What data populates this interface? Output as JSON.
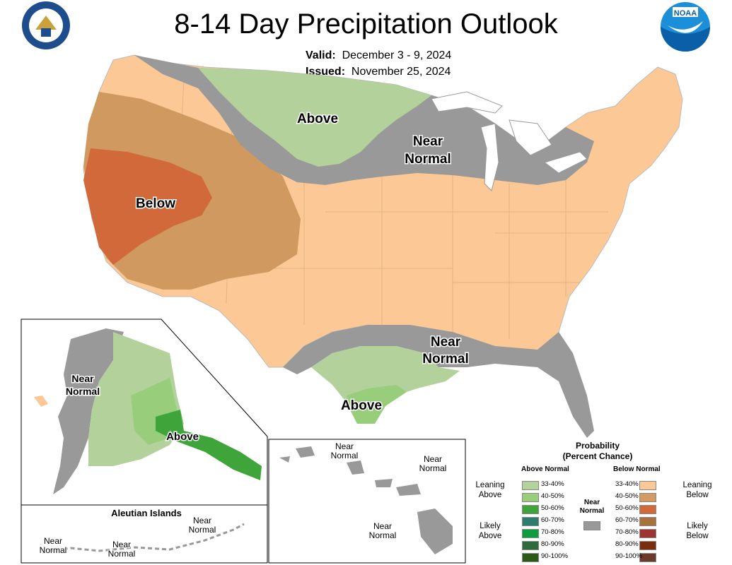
{
  "title": "8-14 Day Precipitation Outlook",
  "valid_label": "Valid:",
  "valid_value": "December 3 - 9, 2024",
  "issued_label": "Issued:",
  "issued_value": "November 25, 2024",
  "map_labels": {
    "above_north": "Above",
    "near_normal_north_1": "Near",
    "near_normal_north_2": "Normal",
    "below_west": "Below",
    "near_normal_south_1": "Near",
    "near_normal_south_2": "Normal",
    "above_south": "Above",
    "alaska_near_1": "Near",
    "alaska_near_2": "Normal",
    "alaska_above": "Above",
    "aleutian_title": "Aleutian Islands",
    "aleutian_near": [
      "Near",
      "Normal"
    ],
    "hawaii_near": [
      "Near",
      "Normal"
    ]
  },
  "legend": {
    "title_1": "Probability",
    "title_2": "(Percent Chance)",
    "above_header": "Above Normal",
    "below_header": "Below Normal",
    "near_label_1": "Near",
    "near_label_2": "Normal",
    "leaning_above": [
      "Leaning",
      "Above"
    ],
    "likely_above": [
      "Likely",
      "Above"
    ],
    "leaning_below": [
      "Leaning",
      "Below"
    ],
    "likely_below": [
      "Likely",
      "Below"
    ],
    "above": [
      {
        "range": "33-40%",
        "color": "#b3d29b"
      },
      {
        "range": "40-50%",
        "color": "#98cd7c"
      },
      {
        "range": "50-60%",
        "color": "#3fa43a"
      },
      {
        "range": "60-70%",
        "color": "#2e7b70"
      },
      {
        "range": "70-80%",
        "color": "#0c9e3e"
      },
      {
        "range": "80-90%",
        "color": "#2d6a3c"
      },
      {
        "range": "90-100%",
        "color": "#2b5a18"
      }
    ],
    "below": [
      {
        "range": "33-40%",
        "color": "#fcc896"
      },
      {
        "range": "40-50%",
        "color": "#d39b62"
      },
      {
        "range": "50-60%",
        "color": "#d1693a"
      },
      {
        "range": "60-70%",
        "color": "#a8723c"
      },
      {
        "range": "70-80%",
        "color": "#9e3432"
      },
      {
        "range": "80-90%",
        "color": "#7b2e0c"
      },
      {
        "range": "90-100%",
        "color": "#6b3a2a"
      }
    ],
    "near_color": "#999999"
  },
  "colors": {
    "near_normal": "#999999",
    "leaning_below": "#fcc896",
    "below_40_50": "#cf995f",
    "below_50_60": "#d1693a",
    "leaning_above": "#b3d29b",
    "above_40_50": "#98cd7c",
    "above_50_60": "#3fa43a"
  }
}
